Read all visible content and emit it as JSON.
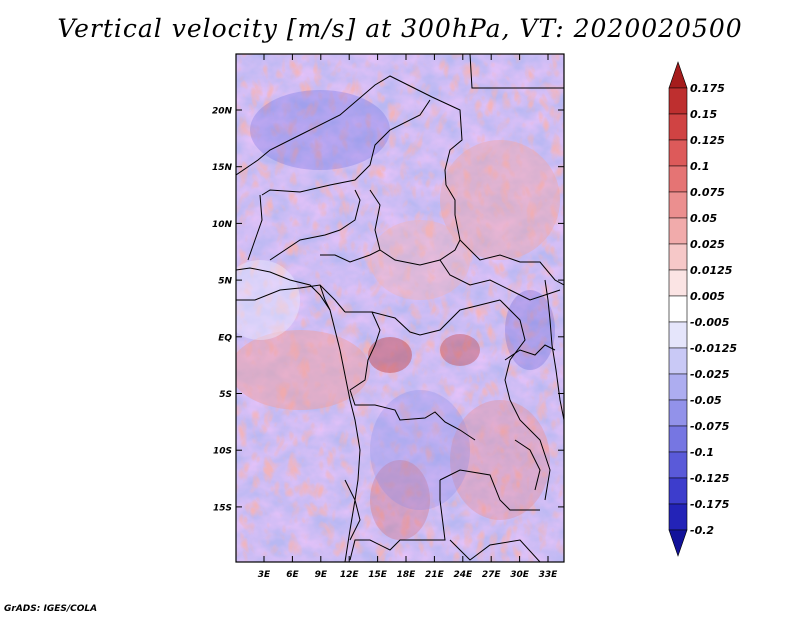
{
  "title": "Vertical velocity [m/s] at 300hPa, VT: 2020020500",
  "credit": "GrADS: IGES/COLA",
  "map": {
    "lat_ticks": [
      "20N",
      "15N",
      "10N",
      "5N",
      "EQ",
      "5S",
      "10S",
      "15S"
    ],
    "lon_ticks": [
      "3E",
      "6E",
      "9E",
      "12E",
      "15E",
      "18E",
      "21E",
      "24E",
      "27E",
      "30E",
      "33E"
    ]
  },
  "colorbar": {
    "labels": [
      "0.175",
      "0.15",
      "0.125",
      "0.1",
      "0.075",
      "0.05",
      "0.025",
      "0.0125",
      "0.005",
      "-0.005",
      "-0.0125",
      "-0.025",
      "-0.05",
      "-0.075",
      "-0.1",
      "-0.125",
      "-0.175",
      "-0.2"
    ],
    "colors": [
      "#a51c1c",
      "#be2f2f",
      "#d04343",
      "#dd5a5a",
      "#e57474",
      "#eb8f8f",
      "#f1abab",
      "#f6c8c8",
      "#fbe4e4",
      "#ffffff",
      "#e5e5fb",
      "#c9c9f6",
      "#adadf0",
      "#9292ea",
      "#7676e2",
      "#5a5ad9",
      "#3d3dcc",
      "#2323b7",
      "#12129a"
    ]
  }
}
